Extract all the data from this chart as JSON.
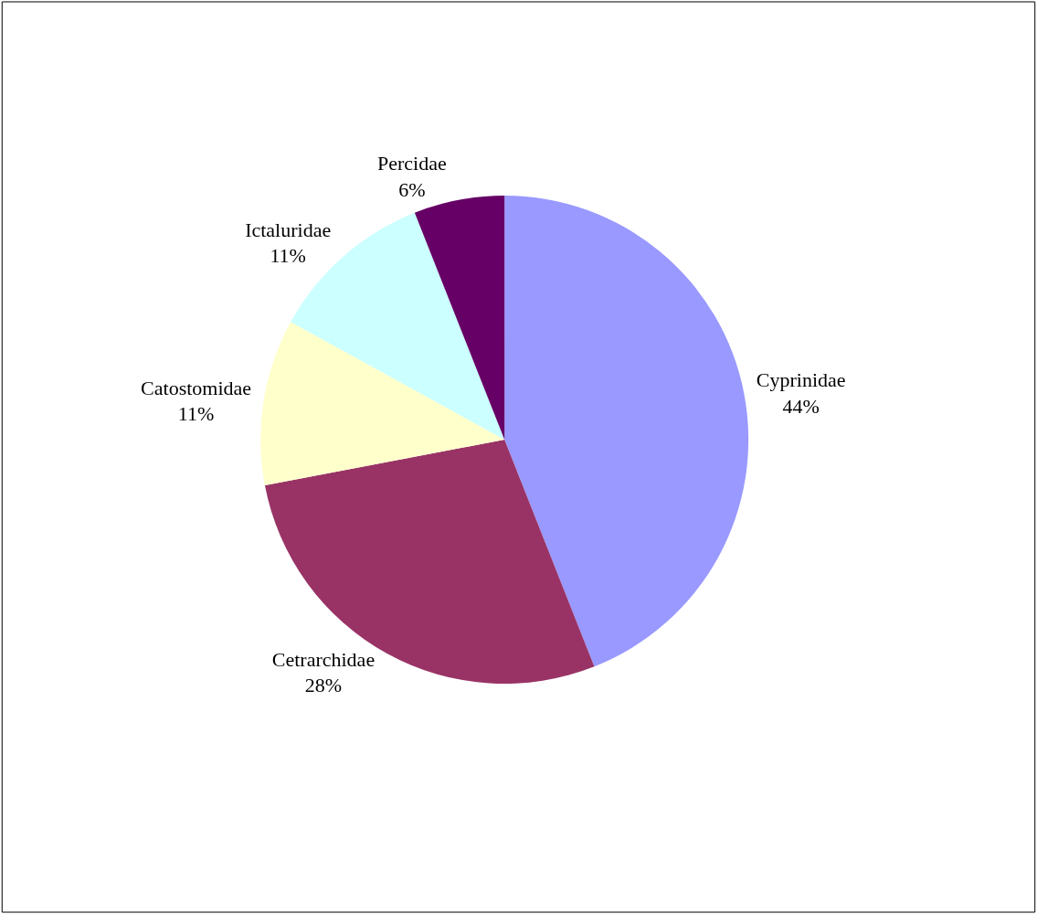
{
  "chart_data": {
    "type": "pie",
    "categories": [
      "Cyprinidae",
      "Cetrarchidae",
      "Catostomidae",
      "Ictaluridae",
      "Percidae"
    ],
    "values": [
      44,
      28,
      11,
      11,
      6
    ],
    "value_labels": [
      "44%",
      "28%",
      "11%",
      "11%",
      "6%"
    ],
    "colors": [
      "#9999ff",
      "#993366",
      "#ffffcc",
      "#ccffff",
      "#660066"
    ],
    "legend": false
  }
}
